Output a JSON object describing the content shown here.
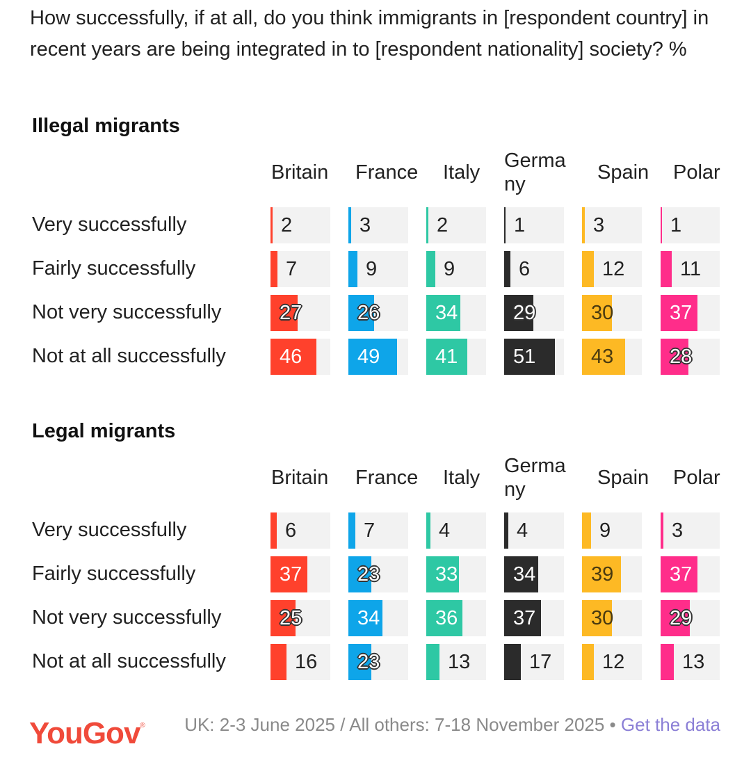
{
  "title": "How successfully, if at all, do you think immigrants in [respondent country] in recent years are being integrated in to [respondent nationality] society? %",
  "chart_data": {
    "type": "bar",
    "title": "How successfully, if at all, do you think immigrants in [respondent country] in recent years are being integrated in to [respondent nationality] society? %",
    "countries": [
      "Britain",
      "France",
      "Italy",
      "Germany",
      "Spain",
      "Poland"
    ],
    "country_labels": [
      "Britain",
      "France",
      "Italy",
      "Germa\nny",
      "Spain",
      "Polar"
    ],
    "categories": [
      "Very successfully",
      "Fairly successfully",
      "Not very successfully",
      "Not at all successfully"
    ],
    "colors": [
      "#ff412c",
      "#0ea5e9",
      "#2ec8a4",
      "#2b2b2b",
      "#fdb924",
      "#ff2d8a"
    ],
    "ylim": [
      0,
      60
    ],
    "panels": [
      {
        "name": "Illegal migrants",
        "series": [
          {
            "name": "Britain",
            "values": [
              2,
              7,
              27,
              46
            ]
          },
          {
            "name": "France",
            "values": [
              3,
              9,
              26,
              49
            ]
          },
          {
            "name": "Italy",
            "values": [
              2,
              9,
              34,
              41
            ]
          },
          {
            "name": "Germany",
            "values": [
              1,
              6,
              29,
              51
            ]
          },
          {
            "name": "Spain",
            "values": [
              3,
              12,
              30,
              43
            ]
          },
          {
            "name": "Poland",
            "values": [
              1,
              11,
              37,
              28
            ]
          }
        ]
      },
      {
        "name": "Legal migrants",
        "series": [
          {
            "name": "Britain",
            "values": [
              6,
              37,
              25,
              16
            ]
          },
          {
            "name": "France",
            "values": [
              7,
              23,
              34,
              23
            ]
          },
          {
            "name": "Italy",
            "values": [
              4,
              33,
              36,
              13
            ]
          },
          {
            "name": "Germany",
            "values": [
              4,
              34,
              37,
              17
            ]
          },
          {
            "name": "Spain",
            "values": [
              9,
              39,
              30,
              12
            ]
          },
          {
            "name": "Poland",
            "values": [
              3,
              37,
              29,
              13
            ]
          }
        ]
      }
    ]
  },
  "footer": {
    "logo": "YouGov",
    "logo_mark": "®",
    "dates": "UK: 2-3 June 2025 / All others: 7-18 November 2025 •",
    "link": "Get the data"
  }
}
